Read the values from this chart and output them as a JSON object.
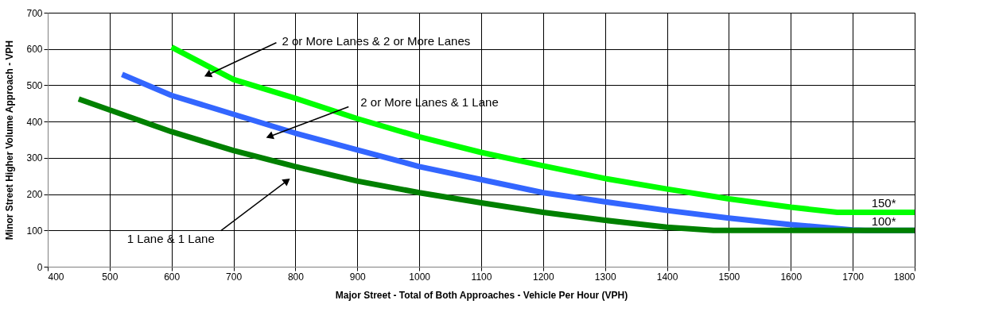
{
  "chart_data": {
    "type": "line",
    "xlabel": "Major Street - Total of Both Approaches - Vehicle Per Hour (VPH)",
    "ylabel": "Minor Street Higher Volume Approach - VPH",
    "xlim": [
      400,
      1800
    ],
    "ylim": [
      0,
      700
    ],
    "xticks": [
      400,
      500,
      600,
      700,
      800,
      900,
      1000,
      1100,
      1200,
      1300,
      1400,
      1500,
      1600,
      1700,
      1800
    ],
    "yticks": [
      0,
      100,
      200,
      300,
      400,
      500,
      600,
      700
    ],
    "grid": true,
    "marker": "none",
    "line_style": "solid",
    "series": [
      {
        "color": "#00ff00",
        "x": [
          600,
          700,
          800,
          900,
          1000,
          1100,
          1200,
          1300,
          1400,
          1500,
          1600,
          1675,
          1800
        ],
        "values": [
          605,
          516,
          464,
          408,
          358,
          315,
          278,
          243,
          214,
          187,
          164,
          150,
          150
        ]
      },
      {
        "color": "#3366ff",
        "x": [
          520,
          600,
          700,
          800,
          900,
          1000,
          1100,
          1200,
          1300,
          1400,
          1500,
          1600,
          1700,
          1720,
          1800
        ],
        "values": [
          530,
          472,
          420,
          368,
          322,
          276,
          240,
          204,
          179,
          155,
          134,
          116,
          101,
          100,
          100
        ]
      },
      {
        "color": "#008000",
        "x": [
          450,
          500,
          600,
          700,
          800,
          900,
          1000,
          1100,
          1200,
          1300,
          1400,
          1475,
          1800
        ],
        "values": [
          462,
          432,
          372,
          320,
          276,
          236,
          204,
          176,
          150,
          128,
          109,
          100,
          100
        ]
      }
    ],
    "annotations": [
      {
        "text": "2 or More Lanes & 2 or More Lanes",
        "x": 660,
        "y": 530
      },
      {
        "text": "2 or More Lanes & 1 Lane",
        "x": 760,
        "y": 360
      },
      {
        "text": "1 Lane & 1 Lane",
        "x": 785,
        "y": 235
      },
      {
        "text": "150*",
        "x": 1750,
        "y": 150
      },
      {
        "text": "100*",
        "x": 1750,
        "y": 100
      }
    ]
  }
}
